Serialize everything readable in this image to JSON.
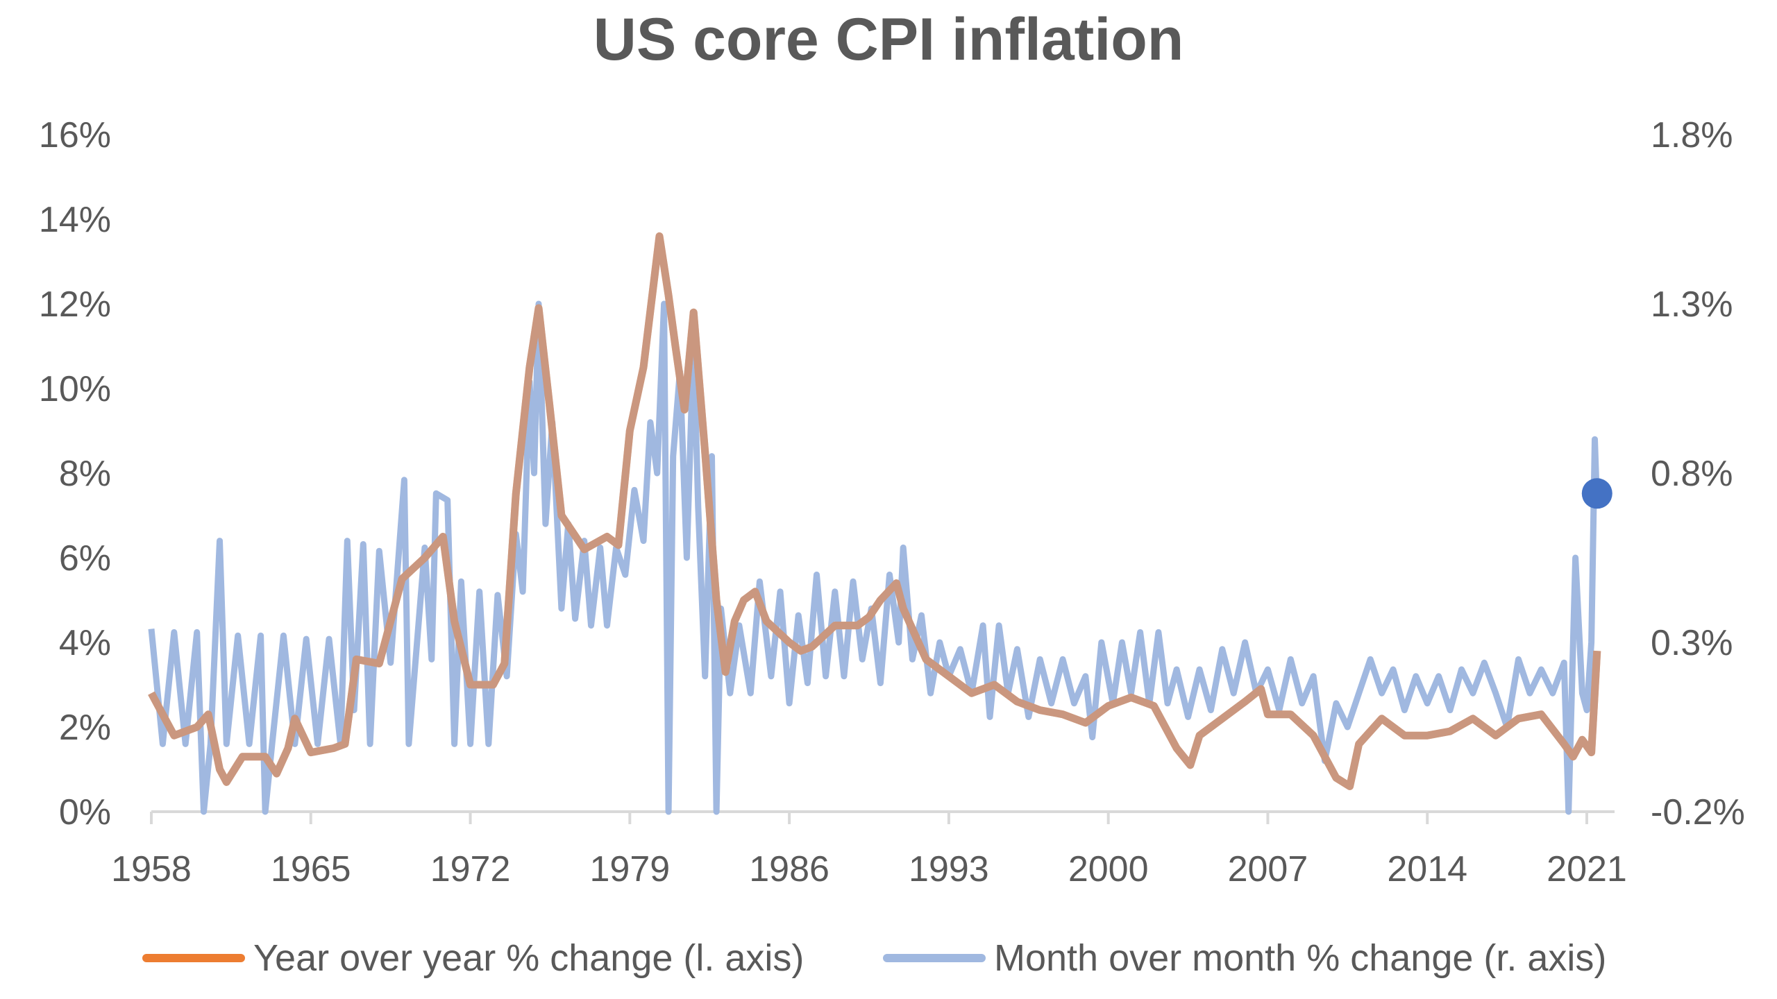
{
  "chart_data": {
    "type": "line",
    "title": "US core CPI inflation",
    "xlabel": "",
    "ylabel": "",
    "x_ticks": [
      "1958",
      "1965",
      "1972",
      "1979",
      "1986",
      "1993",
      "2000",
      "2007",
      "2014",
      "2021"
    ],
    "xlim": [
      1958,
      2022
    ],
    "y_left": {
      "ticks": [
        "0%",
        "2%",
        "4%",
        "6%",
        "8%",
        "10%",
        "12%",
        "14%",
        "16%"
      ],
      "ylim": [
        0,
        16
      ]
    },
    "y_right": {
      "ticks": [
        "-0.2%",
        "0.3%",
        "0.8%",
        "1.3%",
        "1.8%"
      ],
      "ylim": [
        -0.2,
        1.8
      ]
    },
    "grid": false,
    "legend_position": "bottom",
    "series": [
      {
        "name": "Year over year % change (l. axis)",
        "axis": "left",
        "color": "#ED7D31",
        "points": [
          [
            1958,
            2.8
          ],
          [
            1959,
            1.8
          ],
          [
            1960,
            2.0
          ],
          [
            1960.5,
            2.3
          ],
          [
            1961,
            1.0
          ],
          [
            1961.3,
            0.7
          ],
          [
            1962,
            1.3
          ],
          [
            1963,
            1.3
          ],
          [
            1963.5,
            0.9
          ],
          [
            1964,
            1.5
          ],
          [
            1964.3,
            2.2
          ],
          [
            1965,
            1.4
          ],
          [
            1966,
            1.5
          ],
          [
            1966.5,
            1.6
          ],
          [
            1967,
            3.6
          ],
          [
            1968,
            3.5
          ],
          [
            1968.5,
            4.5
          ],
          [
            1969,
            5.5
          ],
          [
            1970,
            6.0
          ],
          [
            1970.8,
            6.5
          ],
          [
            1971.3,
            4.5
          ],
          [
            1972,
            3.0
          ],
          [
            1973,
            3.0
          ],
          [
            1973.5,
            3.5
          ],
          [
            1974,
            7.5
          ],
          [
            1974.6,
            10.5
          ],
          [
            1975,
            11.9
          ],
          [
            1975.5,
            9.5
          ],
          [
            1976,
            7.0
          ],
          [
            1977,
            6.2
          ],
          [
            1978,
            6.5
          ],
          [
            1978.5,
            6.3
          ],
          [
            1979,
            9.0
          ],
          [
            1979.6,
            10.5
          ],
          [
            1980.3,
            13.6
          ],
          [
            1980.7,
            12.2
          ],
          [
            1981,
            11.0
          ],
          [
            1981.4,
            9.5
          ],
          [
            1981.8,
            11.8
          ],
          [
            1982.3,
            8.5
          ],
          [
            1982.8,
            5.0
          ],
          [
            1983.2,
            3.3
          ],
          [
            1983.6,
            4.5
          ],
          [
            1984,
            5.0
          ],
          [
            1984.5,
            5.2
          ],
          [
            1985,
            4.5
          ],
          [
            1986,
            4.0
          ],
          [
            1986.5,
            3.8
          ],
          [
            1987,
            3.9
          ],
          [
            1988,
            4.4
          ],
          [
            1989,
            4.4
          ],
          [
            1989.5,
            4.6
          ],
          [
            1990,
            5.0
          ],
          [
            1990.7,
            5.4
          ],
          [
            1991,
            4.8
          ],
          [
            1992,
            3.6
          ],
          [
            1993,
            3.2
          ],
          [
            1994,
            2.8
          ],
          [
            1995,
            3.0
          ],
          [
            1996,
            2.6
          ],
          [
            1997,
            2.4
          ],
          [
            1998,
            2.3
          ],
          [
            1999,
            2.1
          ],
          [
            2000,
            2.5
          ],
          [
            2001,
            2.7
          ],
          [
            2002,
            2.5
          ],
          [
            2003,
            1.5
          ],
          [
            2003.6,
            1.1
          ],
          [
            2004,
            1.8
          ],
          [
            2005,
            2.2
          ],
          [
            2006,
            2.6
          ],
          [
            2006.7,
            2.9
          ],
          [
            2007,
            2.3
          ],
          [
            2008,
            2.3
          ],
          [
            2009,
            1.8
          ],
          [
            2010,
            0.8
          ],
          [
            2010.6,
            0.6
          ],
          [
            2011,
            1.6
          ],
          [
            2012,
            2.2
          ],
          [
            2013,
            1.8
          ],
          [
            2014,
            1.8
          ],
          [
            2015,
            1.9
          ],
          [
            2016,
            2.2
          ],
          [
            2017,
            1.8
          ],
          [
            2018,
            2.2
          ],
          [
            2019,
            2.3
          ],
          [
            2020,
            1.6
          ],
          [
            2020.4,
            1.3
          ],
          [
            2020.8,
            1.7
          ],
          [
            2021.2,
            1.4
          ],
          [
            2021.45,
            3.8
          ]
        ]
      },
      {
        "name": "Month over month % change (r. axis)",
        "axis": "right",
        "color": "#A0B8E0",
        "points": [
          [
            1958.0,
            0.34
          ],
          [
            1958.5,
            0.0
          ],
          [
            1959.0,
            0.33
          ],
          [
            1959.5,
            0.0
          ],
          [
            1960.0,
            0.33
          ],
          [
            1960.3,
            -0.2
          ],
          [
            1960.6,
            0.0
          ],
          [
            1961.0,
            0.6
          ],
          [
            1961.3,
            0.0
          ],
          [
            1961.8,
            0.32
          ],
          [
            1962.3,
            0.0
          ],
          [
            1962.8,
            0.32
          ],
          [
            1963.0,
            -0.2
          ],
          [
            1963.3,
            0.0
          ],
          [
            1963.8,
            0.32
          ],
          [
            1964.3,
            0.0
          ],
          [
            1964.8,
            0.31
          ],
          [
            1965.3,
            0.0
          ],
          [
            1965.8,
            0.31
          ],
          [
            1966.3,
            0.0
          ],
          [
            1966.6,
            0.6
          ],
          [
            1966.9,
            0.1
          ],
          [
            1967.3,
            0.59
          ],
          [
            1967.6,
            0.0
          ],
          [
            1968.0,
            0.57
          ],
          [
            1968.5,
            0.24
          ],
          [
            1969.1,
            0.78
          ],
          [
            1969.3,
            0.0
          ],
          [
            1970.0,
            0.58
          ],
          [
            1970.3,
            0.25
          ],
          [
            1970.5,
            0.74
          ],
          [
            1971.0,
            0.72
          ],
          [
            1971.3,
            0.0
          ],
          [
            1971.6,
            0.48
          ],
          [
            1972.0,
            0.0
          ],
          [
            1972.4,
            0.45
          ],
          [
            1972.8,
            0.0
          ],
          [
            1973.2,
            0.44
          ],
          [
            1973.6,
            0.2
          ],
          [
            1974.0,
            0.62
          ],
          [
            1974.3,
            0.45
          ],
          [
            1974.6,
            1.07
          ],
          [
            1974.8,
            0.8
          ],
          [
            1975.0,
            1.3
          ],
          [
            1975.3,
            0.65
          ],
          [
            1975.6,
            0.95
          ],
          [
            1976.0,
            0.4
          ],
          [
            1976.3,
            0.65
          ],
          [
            1976.6,
            0.37
          ],
          [
            1977.0,
            0.6
          ],
          [
            1977.3,
            0.35
          ],
          [
            1977.7,
            0.58
          ],
          [
            1978.0,
            0.35
          ],
          [
            1978.4,
            0.58
          ],
          [
            1978.8,
            0.5
          ],
          [
            1979.2,
            0.75
          ],
          [
            1979.6,
            0.6
          ],
          [
            1979.9,
            0.95
          ],
          [
            1980.2,
            0.8
          ],
          [
            1980.5,
            1.3
          ],
          [
            1980.7,
            -0.2
          ],
          [
            1980.9,
            0.85
          ],
          [
            1981.2,
            1.1
          ],
          [
            1981.5,
            0.55
          ],
          [
            1981.8,
            1.2
          ],
          [
            1982.0,
            0.7
          ],
          [
            1982.3,
            0.2
          ],
          [
            1982.6,
            0.85
          ],
          [
            1982.8,
            -0.2
          ],
          [
            1983.0,
            0.4
          ],
          [
            1983.4,
            0.15
          ],
          [
            1983.8,
            0.35
          ],
          [
            1984.3,
            0.15
          ],
          [
            1984.7,
            0.48
          ],
          [
            1985.2,
            0.2
          ],
          [
            1985.6,
            0.45
          ],
          [
            1986.0,
            0.12
          ],
          [
            1986.4,
            0.38
          ],
          [
            1986.8,
            0.18
          ],
          [
            1987.2,
            0.5
          ],
          [
            1987.6,
            0.2
          ],
          [
            1988.0,
            0.45
          ],
          [
            1988.4,
            0.2
          ],
          [
            1988.8,
            0.48
          ],
          [
            1989.2,
            0.25
          ],
          [
            1989.6,
            0.4
          ],
          [
            1990.0,
            0.18
          ],
          [
            1990.4,
            0.5
          ],
          [
            1990.8,
            0.3
          ],
          [
            1991.0,
            0.58
          ],
          [
            1991.4,
            0.25
          ],
          [
            1991.8,
            0.38
          ],
          [
            1992.2,
            0.15
          ],
          [
            1992.6,
            0.3
          ],
          [
            1993.0,
            0.2
          ],
          [
            1993.5,
            0.28
          ],
          [
            1994.0,
            0.15
          ],
          [
            1994.5,
            0.35
          ],
          [
            1994.8,
            0.08
          ],
          [
            1995.2,
            0.35
          ],
          [
            1995.6,
            0.15
          ],
          [
            1996.0,
            0.28
          ],
          [
            1996.5,
            0.08
          ],
          [
            1997.0,
            0.25
          ],
          [
            1997.5,
            0.12
          ],
          [
            1998.0,
            0.25
          ],
          [
            1998.5,
            0.12
          ],
          [
            1999.0,
            0.2
          ],
          [
            1999.3,
            0.02
          ],
          [
            1999.7,
            0.3
          ],
          [
            2000.2,
            0.12
          ],
          [
            2000.6,
            0.3
          ],
          [
            2001.0,
            0.15
          ],
          [
            2001.4,
            0.33
          ],
          [
            2001.8,
            0.12
          ],
          [
            2002.2,
            0.33
          ],
          [
            2002.6,
            0.12
          ],
          [
            2003.0,
            0.22
          ],
          [
            2003.5,
            0.08
          ],
          [
            2004.0,
            0.22
          ],
          [
            2004.5,
            0.1
          ],
          [
            2005.0,
            0.28
          ],
          [
            2005.5,
            0.15
          ],
          [
            2006.0,
            0.3
          ],
          [
            2006.5,
            0.15
          ],
          [
            2007.0,
            0.22
          ],
          [
            2007.5,
            0.1
          ],
          [
            2008.0,
            0.25
          ],
          [
            2008.5,
            0.12
          ],
          [
            2009.0,
            0.2
          ],
          [
            2009.5,
            -0.05
          ],
          [
            2010.0,
            0.12
          ],
          [
            2010.5,
            0.05
          ],
          [
            2011.0,
            0.15
          ],
          [
            2011.5,
            0.25
          ],
          [
            2012.0,
            0.15
          ],
          [
            2012.5,
            0.22
          ],
          [
            2013.0,
            0.1
          ],
          [
            2013.5,
            0.2
          ],
          [
            2014.0,
            0.12
          ],
          [
            2014.5,
            0.2
          ],
          [
            2015.0,
            0.1
          ],
          [
            2015.5,
            0.22
          ],
          [
            2016.0,
            0.15
          ],
          [
            2016.5,
            0.24
          ],
          [
            2017.0,
            0.15
          ],
          [
            2017.5,
            0.05
          ],
          [
            2018.0,
            0.25
          ],
          [
            2018.5,
            0.15
          ],
          [
            2019.0,
            0.22
          ],
          [
            2019.5,
            0.15
          ],
          [
            2020.0,
            0.24
          ],
          [
            2020.2,
            -0.2
          ],
          [
            2020.5,
            0.55
          ],
          [
            2020.8,
            0.15
          ],
          [
            2021.0,
            0.1
          ],
          [
            2021.2,
            0.3
          ],
          [
            2021.35,
            0.9
          ],
          [
            2021.45,
            0.7
          ]
        ]
      }
    ],
    "highlight_point": {
      "x": 2021.45,
      "y": 0.74,
      "axis": "right",
      "color": "#4472C4"
    }
  }
}
